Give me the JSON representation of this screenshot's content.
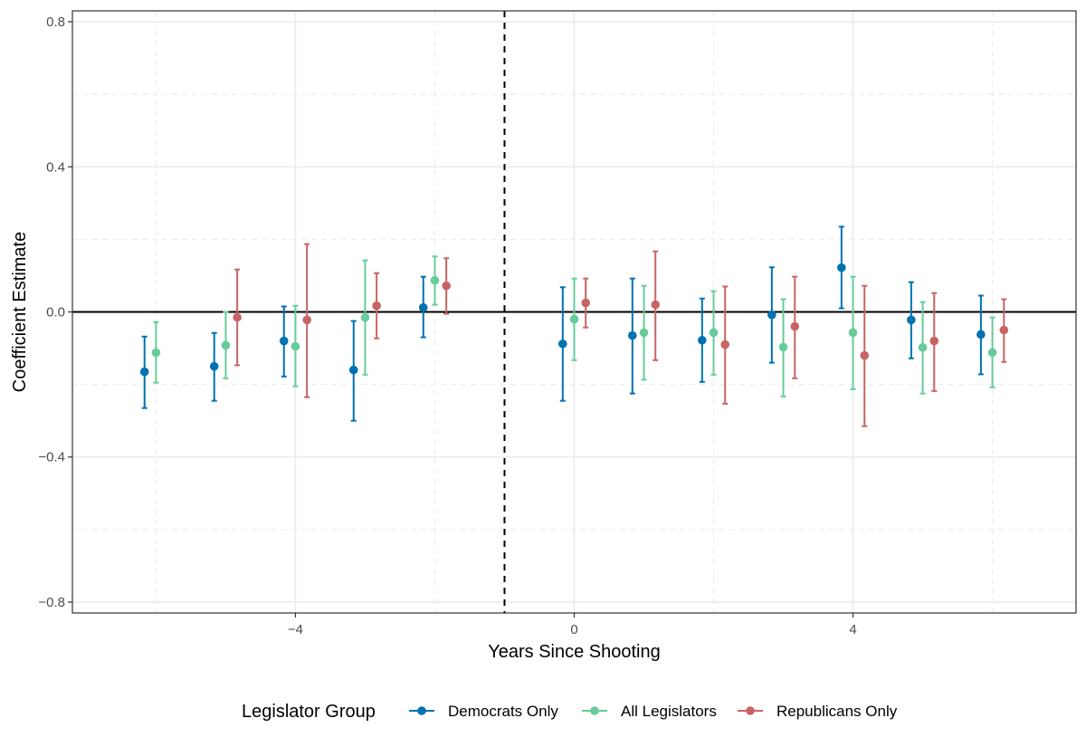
{
  "chart_data": {
    "type": "scatter",
    "subtype": "coefficient-plot-with-error-bars",
    "xlabel": "Years Since Shooting",
    "ylabel": "Coefficient Estimate",
    "xlim": [
      -7.2,
      7.2
    ],
    "ylim": [
      -0.83,
      0.83
    ],
    "x_ticks": [
      -4,
      0,
      4
    ],
    "x_tick_labels": [
      "−4",
      "0",
      "4"
    ],
    "y_ticks": [
      -0.8,
      -0.4,
      0.0,
      0.4,
      0.8
    ],
    "y_tick_labels": [
      "−0.8",
      "−0.4",
      "0.0",
      "0.4",
      "0.8"
    ],
    "grid": true,
    "reference_lines": {
      "horizontal_solid_at": 0.0,
      "vertical_dashed_at": -1.0
    },
    "legend": {
      "title": "Legislator Group",
      "position": "bottom",
      "entries": [
        "Democrats Only",
        "All Legislators",
        "Republicans Only"
      ]
    },
    "series": [
      {
        "name": "Democrats Only",
        "color": "#0072B2",
        "x": [
          -6,
          -5,
          -4,
          -3,
          -2,
          0,
          1,
          2,
          3,
          4,
          5,
          6
        ],
        "estimate": [
          -0.165,
          -0.15,
          -0.08,
          -0.16,
          0.012,
          -0.088,
          -0.065,
          -0.078,
          -0.008,
          0.122,
          -0.022,
          -0.062
        ],
        "lower": [
          -0.265,
          -0.245,
          -0.178,
          -0.3,
          -0.07,
          -0.245,
          -0.225,
          -0.193,
          -0.14,
          0.01,
          -0.128,
          -0.172
        ],
        "upper": [
          -0.068,
          -0.058,
          0.015,
          -0.025,
          0.097,
          0.068,
          0.092,
          0.037,
          0.123,
          0.235,
          0.082,
          0.045
        ]
      },
      {
        "name": "All Legislators",
        "color": "#66CC99",
        "x": [
          -6,
          -5,
          -4,
          -3,
          -2,
          0,
          1,
          2,
          3,
          4,
          5,
          6
        ],
        "estimate": [
          -0.112,
          -0.092,
          -0.095,
          -0.015,
          0.087,
          -0.02,
          -0.057,
          -0.057,
          -0.097,
          -0.057,
          -0.098,
          -0.112
        ],
        "lower": [
          -0.195,
          -0.183,
          -0.205,
          -0.173,
          0.02,
          -0.133,
          -0.187,
          -0.173,
          -0.233,
          -0.213,
          -0.225,
          -0.208
        ],
        "upper": [
          -0.028,
          0.0,
          0.017,
          0.142,
          0.153,
          0.092,
          0.072,
          0.057,
          0.035,
          0.097,
          0.027,
          -0.015
        ]
      },
      {
        "name": "Republicans Only",
        "color": "#C86464",
        "x": [
          -6,
          -5,
          -4,
          -3,
          -2,
          0,
          1,
          2,
          3,
          4,
          5,
          6
        ],
        "estimate": [
          null,
          -0.015,
          -0.022,
          0.017,
          0.072,
          0.025,
          0.02,
          -0.09,
          -0.04,
          -0.12,
          -0.08,
          -0.05
        ],
        "lower": [
          null,
          -0.147,
          -0.235,
          -0.073,
          -0.005,
          -0.043,
          -0.133,
          -0.253,
          -0.183,
          -0.315,
          -0.218,
          -0.138
        ],
        "upper": [
          null,
          0.117,
          0.187,
          0.107,
          0.148,
          0.092,
          0.167,
          0.07,
          0.097,
          0.072,
          0.052,
          0.035
        ]
      }
    ]
  }
}
